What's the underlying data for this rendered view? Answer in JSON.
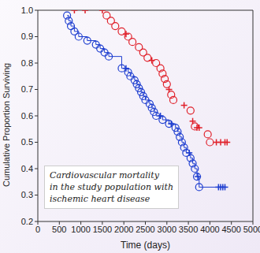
{
  "chart_data": {
    "type": "survival",
    "x_label": "Time (days)",
    "y_label": "Cumulative Proportion Surviving",
    "annotation": [
      "Cardiovascular mortality",
      "in the study population with",
      "ischemic heart disease"
    ],
    "xlim": [
      0,
      5000
    ],
    "xticks": [
      0,
      500,
      1000,
      1500,
      2000,
      2500,
      3000,
      3500,
      4000,
      4500,
      5000
    ],
    "ylim": [
      0.2,
      1
    ],
    "yticks": [
      0.2,
      0.3,
      0.4,
      0.5,
      0.6,
      0.7,
      0.8,
      0.9,
      {
        "value": 1,
        "label": "1.0"
      }
    ],
    "grid": false,
    "series": [
      {
        "color": "#1f3fd0",
        "line_style": "step",
        "marker": "circle",
        "x": [
          680,
          720,
          770,
          850,
          950,
          1150,
          1350,
          1450,
          1550,
          1650,
          1950,
          2050,
          2100,
          2150,
          2250,
          2300,
          2350,
          2400,
          2450,
          2500,
          2600,
          2650,
          2700,
          2750,
          2850,
          2900,
          3050,
          3100,
          3200,
          3250,
          3300,
          3350,
          3400,
          3450,
          3520,
          3550,
          3600,
          3650,
          3700,
          3720,
          3750,
          4200,
          4250,
          4300,
          4350
        ],
        "values": [
          0.98,
          0.96,
          0.94,
          0.92,
          0.9,
          0.885,
          0.87,
          0.855,
          0.84,
          0.825,
          0.78,
          0.78,
          0.765,
          0.75,
          0.735,
          0.72,
          0.705,
          0.69,
          0.675,
          0.66,
          0.645,
          0.63,
          0.615,
          0.6,
          0.6,
          0.585,
          0.57,
          0.57,
          0.555,
          0.54,
          0.52,
          0.5,
          0.48,
          0.46,
          0.46,
          0.44,
          0.42,
          0.4,
          0.37,
          0.37,
          0.33,
          0.33,
          0.33,
          0.33,
          0.33
        ],
        "censored": [
          false,
          false,
          false,
          false,
          false,
          false,
          false,
          false,
          false,
          false,
          false,
          true,
          false,
          false,
          false,
          false,
          false,
          false,
          false,
          false,
          false,
          false,
          false,
          false,
          true,
          false,
          false,
          true,
          false,
          false,
          false,
          false,
          false,
          false,
          true,
          false,
          false,
          false,
          false,
          true,
          false,
          true,
          true,
          true,
          true
        ]
      },
      {
        "color": "#e0202a",
        "line_style": "none",
        "marker": "circle",
        "x": [
          850,
          1100,
          1500,
          1600,
          1700,
          1800,
          1950,
          2050,
          2100,
          2200,
          2350,
          2450,
          2550,
          2650,
          2750,
          2850,
          2900,
          2950,
          3000,
          3050,
          3100,
          3150,
          3400,
          3550,
          3600,
          3650,
          3700,
          3750,
          3950,
          4000,
          4150,
          4250,
          4350,
          4400
        ],
        "values": [
          1,
          1,
          1,
          0.98,
          0.96,
          0.94,
          0.92,
          0.91,
          0.9,
          0.88,
          0.86,
          0.84,
          0.82,
          0.81,
          0.8,
          0.78,
          0.76,
          0.74,
          0.72,
          0.7,
          0.68,
          0.66,
          0.64,
          0.62,
          0.58,
          0.56,
          0.555,
          0.555,
          0.53,
          0.5,
          0.5,
          0.5,
          0.5,
          0.5
        ],
        "censored": [
          true,
          true,
          true,
          false,
          false,
          false,
          false,
          true,
          false,
          false,
          false,
          false,
          false,
          true,
          false,
          false,
          false,
          false,
          false,
          true,
          false,
          false,
          true,
          false,
          true,
          false,
          true,
          true,
          false,
          false,
          true,
          true,
          true,
          true
        ]
      }
    ]
  }
}
